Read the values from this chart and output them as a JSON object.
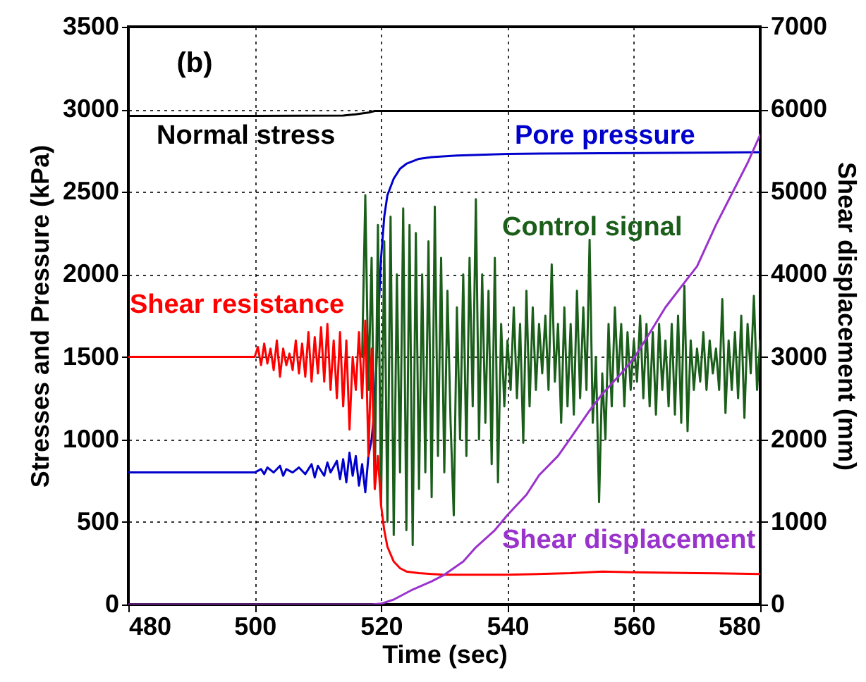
{
  "chart_data": {
    "type": "line",
    "xlabel": "Time (sec)",
    "ylabel": "Stresses and Pressure (kPa)",
    "y2label": "Shear displacement (mm)",
    "annotations": [
      "(b)"
    ],
    "xlim": [
      480,
      580
    ],
    "xticks": [
      480,
      500,
      520,
      540,
      560,
      580
    ],
    "ylim": [
      0,
      3500
    ],
    "yticks": [
      0,
      500,
      1000,
      1500,
      2000,
      2500,
      3000,
      3500
    ],
    "y2lim": [
      0,
      7000
    ],
    "y2ticks": [
      0,
      1000,
      2000,
      3000,
      4000,
      5000,
      6000,
      7000
    ],
    "grid": true,
    "series": [
      {
        "name": "Normal stress",
        "color": "#000000",
        "x": [
          480,
          500,
          514,
          516,
          518,
          519,
          520,
          540,
          560,
          580
        ],
        "values": [
          2960,
          2960,
          2962,
          2970,
          2980,
          2990,
          2990,
          2990,
          2990,
          2990
        ]
      },
      {
        "name": "Pore pressure",
        "color": "#0000cc",
        "x": [
          480,
          500,
          501,
          501.5,
          502,
          503,
          504,
          504.5,
          505,
          506,
          507,
          508,
          509,
          509.5,
          510,
          511,
          511.5,
          512,
          513,
          513.5,
          514,
          514.5,
          515,
          515.5,
          516,
          516.5,
          517,
          517.5,
          518,
          518.5,
          519,
          519.5,
          520,
          520.5,
          521,
          522,
          523,
          524,
          526,
          528,
          532,
          540,
          560,
          580
        ],
        "values": [
          800,
          800,
          820,
          790,
          830,
          800,
          840,
          780,
          820,
          800,
          830,
          790,
          850,
          770,
          840,
          780,
          860,
          800,
          870,
          760,
          880,
          740,
          920,
          780,
          900,
          720,
          850,
          680,
          900,
          1000,
          1200,
          1700,
          2100,
          2350,
          2480,
          2580,
          2640,
          2670,
          2700,
          2710,
          2720,
          2730,
          2735,
          2740
        ]
      },
      {
        "name": "Control signal",
        "color": "#1a5e1a",
        "x": [
          517,
          517.5,
          518,
          518.5,
          519,
          519.5,
          520,
          520.5,
          521,
          521.5,
          522,
          522.5,
          523,
          523.5,
          524,
          524.5,
          525,
          525.5,
          526,
          526.5,
          527,
          527.5,
          528,
          528.5,
          529,
          529.5,
          530,
          530.5,
          531,
          531.5,
          532,
          532.5,
          533,
          533.5,
          534,
          534.5,
          535,
          535.5,
          536,
          536.5,
          537,
          537.5,
          538,
          538.5,
          539,
          539.5,
          540,
          540.5,
          541,
          541.5,
          542,
          542.5,
          543,
          543.5,
          544,
          544.5,
          545,
          545.5,
          546,
          546.5,
          547,
          547.5,
          548,
          548.5,
          549,
          549.5,
          550,
          550.5,
          551,
          551.5,
          552,
          552.5,
          553,
          553.5,
          554,
          554.5,
          555,
          555.5,
          556,
          556.5,
          557,
          557.5,
          558,
          558.5,
          559,
          559.5,
          560,
          560.5,
          561,
          561.5,
          562,
          562.5,
          563,
          563.5,
          564,
          564.5,
          565,
          565.5,
          566,
          566.5,
          567,
          567.5,
          568,
          568.5,
          569,
          569.5,
          570,
          570.5,
          571,
          571.5,
          572,
          572.5,
          573,
          573.5,
          574,
          574.5,
          575,
          575.5,
          576,
          576.5,
          577,
          577.5,
          578,
          578.5,
          579,
          579.5,
          580
        ],
        "values": [
          1500,
          2480,
          1300,
          2100,
          700,
          2300,
          600,
          2200,
          500,
          2350,
          420,
          2000,
          800,
          2400,
          450,
          2300,
          360,
          2250,
          700,
          2000,
          800,
          2200,
          650,
          2410,
          900,
          2100,
          800,
          1900,
          1100,
          540,
          1800,
          1000,
          2000,
          900,
          2100,
          1200,
          2455,
          1000,
          2000,
          1100,
          1900,
          850,
          2100,
          740,
          1700,
          1200,
          1600,
          1300,
          1800,
          1250,
          1700,
          980,
          1900,
          1200,
          1800,
          1300,
          1700,
          1400,
          1750,
          1300,
          2060,
          1350,
          1700,
          1100,
          1800,
          1200,
          1700,
          1150,
          1900,
          1250,
          1800,
          1300,
          2210,
          1100,
          1500,
          620,
          1400,
          1000,
          1700,
          1200,
          1800,
          1350,
          1700,
          1200,
          1650,
          1300,
          1600,
          1350,
          1750,
          1250,
          1700,
          1200,
          1650,
          1150,
          1700,
          1300,
          1600,
          1200,
          1700,
          1150,
          1750,
          1100,
          1930,
          1050,
          1600,
          1300,
          1550,
          1350,
          1650,
          1300,
          1600,
          1400,
          1550,
          1300,
          1850,
          1160,
          1600,
          1300,
          1650,
          1250,
          1750,
          1130,
          1700,
          1400,
          1870,
          1300,
          1600
        ]
      },
      {
        "name": "Shear resistance",
        "color": "#ff0000",
        "x": [
          480,
          500,
          500.5,
          501,
          501.5,
          502,
          502.5,
          503,
          503.5,
          504,
          504.5,
          505,
          505.5,
          506,
          506.5,
          507,
          507.5,
          508,
          508.5,
          509,
          509.5,
          510,
          510.5,
          511,
          511.5,
          512,
          512.5,
          513,
          513.5,
          514,
          514.5,
          515,
          515.5,
          516,
          516.5,
          517,
          517.5,
          518,
          518.5,
          519,
          519.5,
          520,
          520.5,
          521,
          522,
          523,
          524,
          526,
          528,
          530,
          540,
          550,
          555,
          560,
          570,
          580
        ],
        "values": [
          1500,
          1500,
          1560,
          1450,
          1580,
          1460,
          1550,
          1420,
          1600,
          1380,
          1550,
          1450,
          1520,
          1420,
          1600,
          1400,
          1580,
          1380,
          1650,
          1350,
          1620,
          1400,
          1680,
          1350,
          1700,
          1300,
          1600,
          1250,
          1650,
          1200,
          1600,
          1060,
          1500,
          1300,
          1650,
          1250,
          1720,
          900,
          1550,
          700,
          900,
          600,
          450,
          350,
          260,
          220,
          200,
          190,
          185,
          180,
          180,
          190,
          200,
          195,
          190,
          185
        ]
      },
      {
        "name": "Shear displacement",
        "color": "#9933cc",
        "axis": "y2",
        "x": [
          480,
          518.5,
          520,
          522,
          525,
          528,
          530,
          533,
          535,
          538,
          540,
          543,
          545,
          548,
          550,
          553,
          555,
          558,
          560,
          563,
          565,
          568,
          570,
          573,
          575,
          578,
          580
        ],
        "values": [
          0,
          0,
          10,
          60,
          181,
          280,
          360,
          520,
          693,
          900,
          1084,
          1330,
          1566,
          1800,
          2018,
          2350,
          2550,
          2800,
          2982,
          3350,
          3600,
          3900,
          4096,
          4600,
          4900,
          5350,
          5693
        ]
      }
    ]
  }
}
